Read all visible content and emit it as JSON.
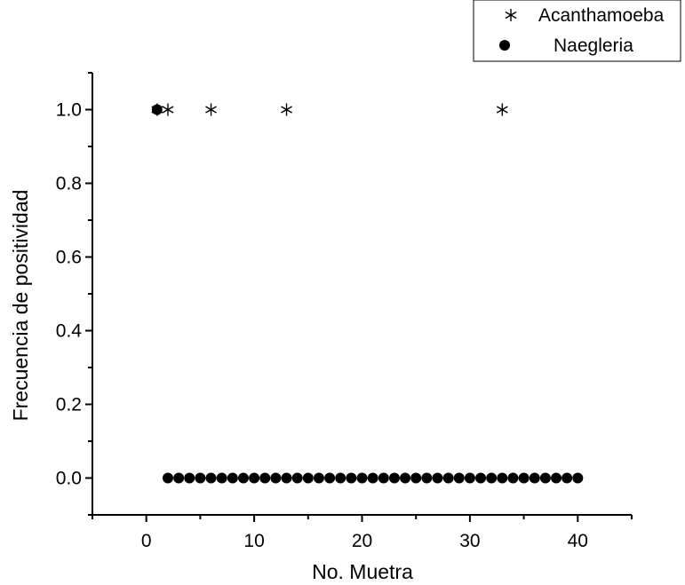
{
  "chart_data": {
    "type": "scatter",
    "title": "",
    "xlabel": "No. Muetra",
    "ylabel": "Frecuencia de positividad",
    "xlim": [
      -5,
      45
    ],
    "ylim": [
      -0.1,
      1.1
    ],
    "xticks": [
      0,
      10,
      20,
      30,
      40
    ],
    "xtick_labels": [
      "0",
      "10",
      "20",
      "30",
      "40"
    ],
    "yticks": [
      0.0,
      0.2,
      0.4,
      0.6,
      0.8,
      1.0
    ],
    "ytick_labels": [
      "0.0",
      "0.2",
      "0.4",
      "0.6",
      "0.8",
      "1.0"
    ],
    "grid": false,
    "legend_position": "top-right, outside plot",
    "series": [
      {
        "name": "Acanthamoeba",
        "marker": "asterisk",
        "color": "#000000",
        "x": [
          1,
          2,
          6,
          13,
          33
        ],
        "y": [
          1,
          1,
          1,
          1,
          1
        ]
      },
      {
        "name": "Naegleria",
        "marker": "filled-circle",
        "color": "#000000",
        "x": [
          1,
          2,
          3,
          4,
          5,
          6,
          7,
          8,
          9,
          10,
          11,
          12,
          13,
          14,
          15,
          16,
          17,
          18,
          19,
          20,
          21,
          22,
          23,
          24,
          25,
          26,
          27,
          28,
          29,
          30,
          31,
          32,
          33,
          34,
          35,
          36,
          37,
          38,
          39,
          40
        ],
        "y": [
          1,
          0,
          0,
          0,
          0,
          0,
          0,
          0,
          0,
          0,
          0,
          0,
          0,
          0,
          0,
          0,
          0,
          0,
          0,
          0,
          0,
          0,
          0,
          0,
          0,
          0,
          0,
          0,
          0,
          0,
          0,
          0,
          0,
          0,
          0,
          0,
          0,
          0,
          0,
          0
        ]
      }
    ]
  }
}
